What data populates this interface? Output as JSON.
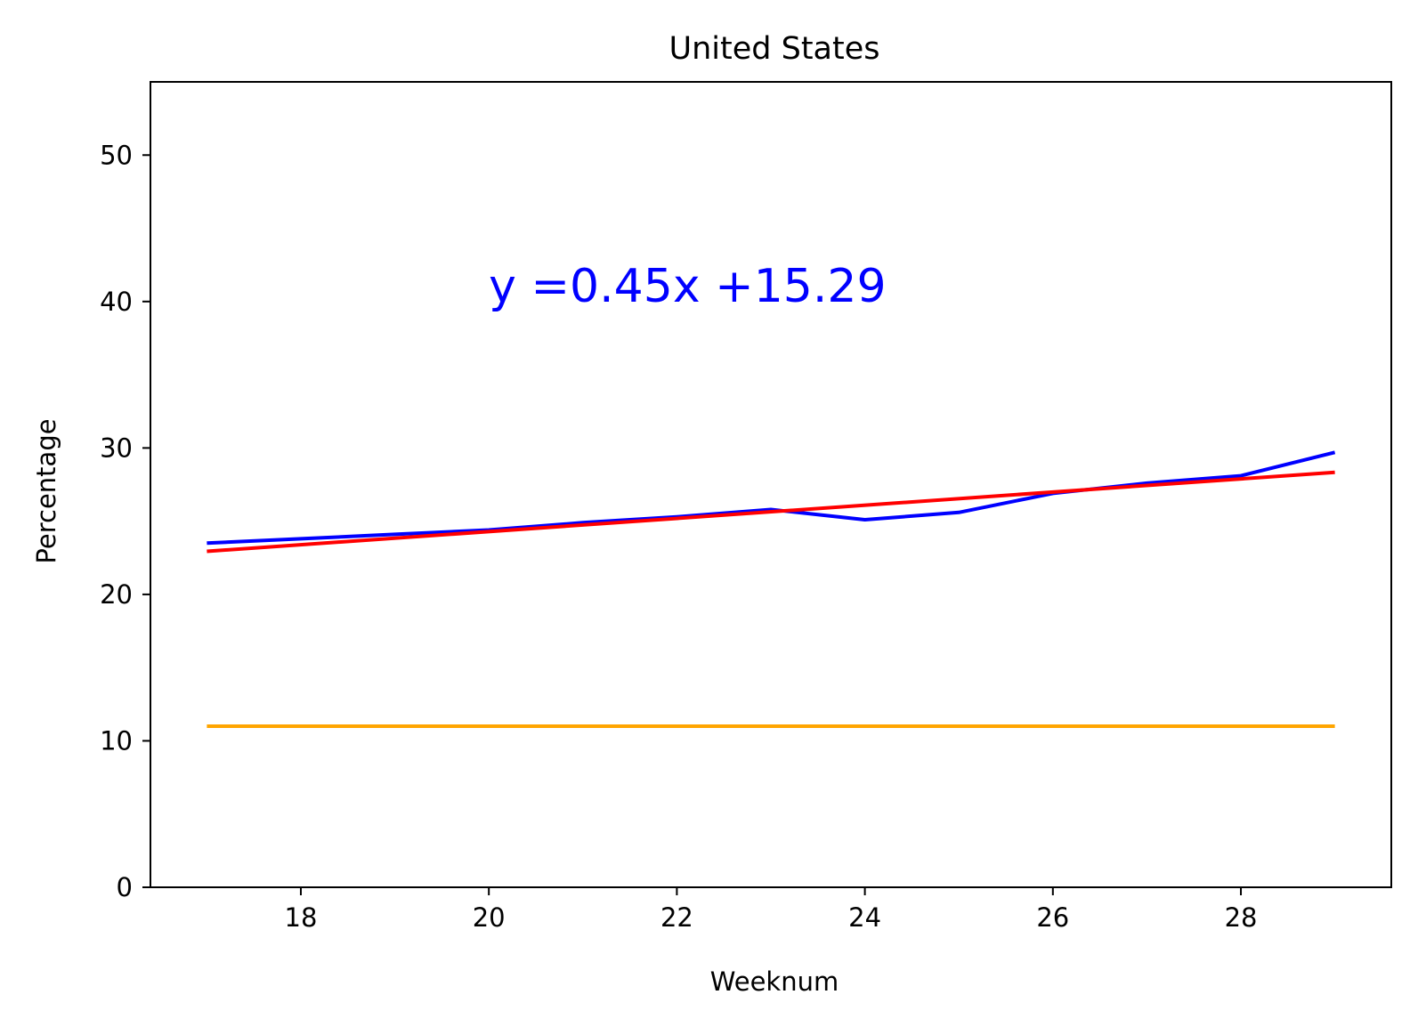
{
  "chart_data": {
    "type": "line",
    "title": "United States",
    "xlabel": "Weeknum",
    "ylabel": "Percentage",
    "xlim": [
      16.4,
      29.6
    ],
    "ylim": [
      0,
      55
    ],
    "xticks": [
      18,
      20,
      22,
      24,
      26,
      28
    ],
    "yticks": [
      0,
      10,
      20,
      30,
      40,
      50
    ],
    "grid": false,
    "legend": "none",
    "series": [
      {
        "color": "#0000ff",
        "x": [
          17,
          18,
          19,
          20,
          21,
          22,
          23,
          24,
          25,
          26,
          27,
          28,
          29
        ],
        "y": [
          23.5,
          23.8,
          24.1,
          24.4,
          24.9,
          25.3,
          25.8,
          25.1,
          25.6,
          26.9,
          27.6,
          28.1,
          29.7
        ]
      },
      {
        "color": "#ff0000",
        "x": [
          17,
          29
        ],
        "y": [
          22.94,
          28.34
        ]
      },
      {
        "color": "#ffa500",
        "x": [
          17,
          29
        ],
        "y": [
          11,
          11
        ]
      }
    ],
    "annotations": [
      {
        "text": "y =0.45x +15.29",
        "x": 20,
        "y": 40,
        "color": "#0000ff"
      }
    ]
  }
}
